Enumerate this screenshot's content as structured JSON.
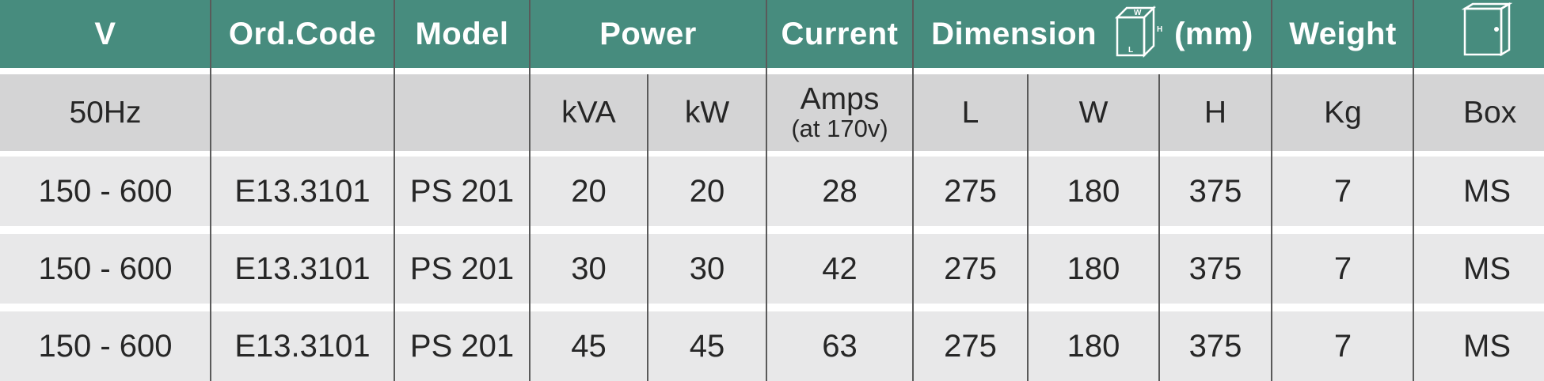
{
  "header": {
    "v": "V",
    "ord_code": "Ord.Code",
    "model": "Model",
    "power": "Power",
    "current": "Current",
    "dimension": "Dimension",
    "dimension_unit": "(mm)",
    "dim_icon_w": "W",
    "dim_icon_h": "H",
    "dim_icon_l": "L",
    "weight": "Weight"
  },
  "subheader": {
    "v": "50Hz",
    "ord_code": "",
    "model": "",
    "kva": "kVA",
    "kw": "kW",
    "amps": "Amps",
    "amps_note": "(at 170v)",
    "l": "L",
    "w": "W",
    "h": "H",
    "kg": "Kg",
    "box": "Box"
  },
  "rows": [
    {
      "v": "150 - 600",
      "ord_code": "E13.3101",
      "model": "PS 201",
      "kva": "20",
      "kw": "20",
      "amps": "28",
      "l": "275",
      "w": "180",
      "h": "375",
      "kg": "7",
      "box": "MS"
    },
    {
      "v": "150 - 600",
      "ord_code": "E13.3101",
      "model": "PS 201",
      "kva": "30",
      "kw": "30",
      "amps": "42",
      "l": "275",
      "w": "180",
      "h": "375",
      "kg": "7",
      "box": "MS"
    },
    {
      "v": "150 - 600",
      "ord_code": "E13.3101",
      "model": "PS 201",
      "kva": "45",
      "kw": "45",
      "amps": "63",
      "l": "275",
      "w": "180",
      "h": "375",
      "kg": "7",
      "box": "MS"
    }
  ],
  "icons": {
    "dimension": "box-dimension-icon",
    "enclosure": "enclosure-box-icon"
  },
  "colors": {
    "header_bg": "#478c7e",
    "subheader_bg": "#d4d4d5",
    "row_bg": "#e8e8e9"
  }
}
